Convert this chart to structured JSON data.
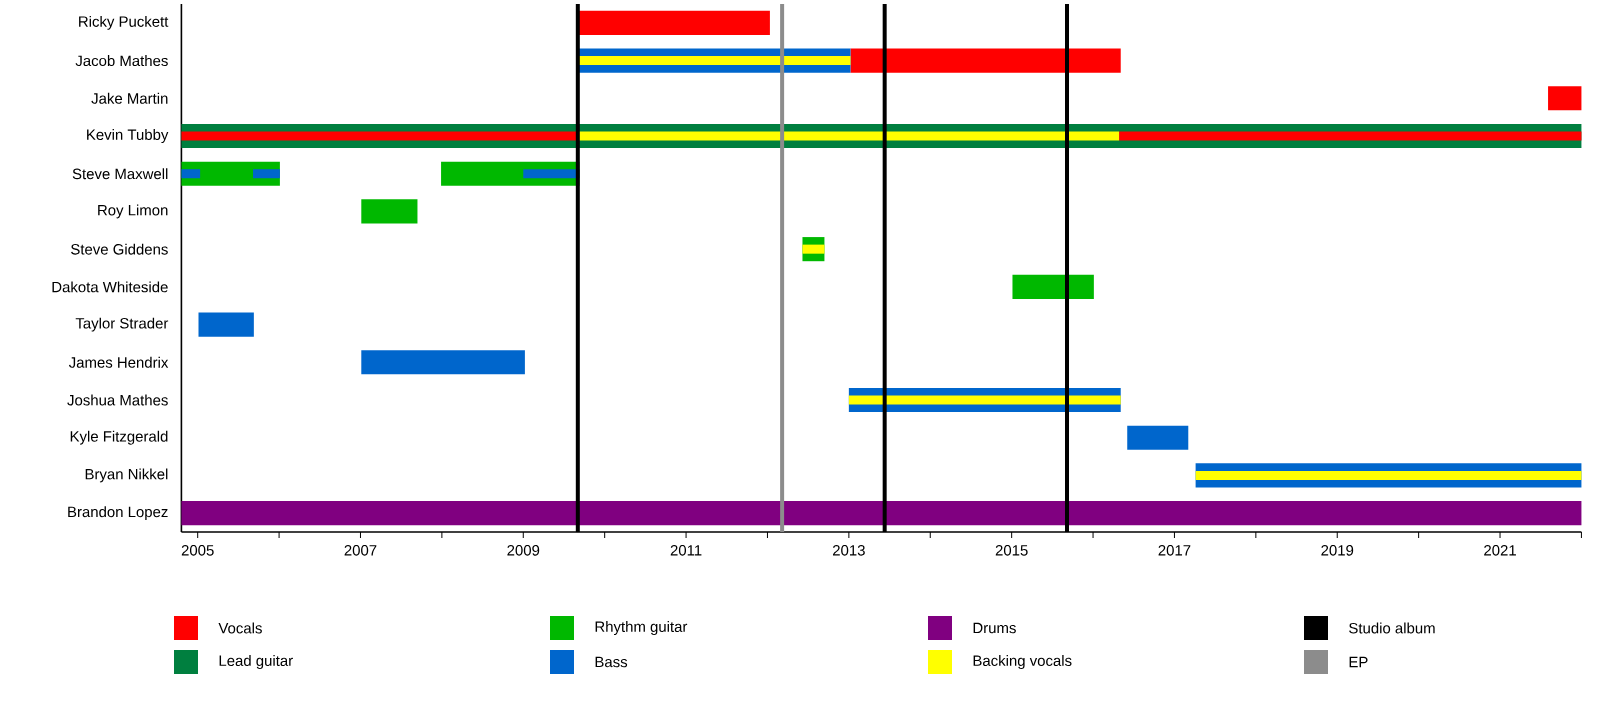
{
  "chart_data": {
    "type": "bar",
    "orientation": "horizontal",
    "legend": "bottom",
    "categories": [
      "Ricky Puckett",
      "Jacob Mathes",
      "Jake Martin",
      "Kevin Tubby",
      "Steve Maxwell",
      "Roy Limon",
      "Steve Giddens",
      "Dakota Whiteside",
      "Taylor Strader",
      "James Hendrix",
      "Joshua Mathes",
      "Kyle Fitzgerald",
      "Bryan Nikkel",
      "Brandon Lopez"
    ],
    "xlim": [
      2004.8,
      2022.0
    ],
    "xticks": [
      2005,
      {
        "value": 2006,
        "label": null
      },
      2007,
      {
        "value": 2008,
        "label": null
      },
      2009,
      {
        "value": 2010,
        "label": null
      },
      2011,
      {
        "value": 2012,
        "label": null
      },
      2013,
      {
        "value": 2014,
        "label": null
      },
      2015,
      {
        "value": 2016,
        "label": null
      },
      2017,
      {
        "value": 2018,
        "label": null
      },
      2019,
      {
        "value": 2020,
        "label": null
      },
      2021,
      {
        "value": 2022,
        "label": null
      }
    ],
    "series": [
      {
        "name": "Vocals",
        "color": "#ff0000",
        "base": [
          2009.67,
          2013.02,
          2021.59,
          2004.8,
          null,
          null,
          null,
          null,
          null,
          null,
          null,
          null,
          null,
          null
        ],
        "values": [
          2.36,
          3.32,
          0.41,
          4.87,
          null,
          null,
          null,
          null,
          null,
          null,
          null,
          null,
          null,
          null
        ]
      },
      {
        "color": "#ff0000",
        "base": [
          null,
          null,
          null,
          2016.32,
          null,
          null,
          null,
          null,
          null,
          null,
          null,
          null,
          null,
          null
        ],
        "values": [
          null,
          null,
          null,
          5.68,
          null,
          null,
          null,
          null,
          null,
          null,
          null,
          null,
          null,
          null
        ]
      },
      {
        "name": "Lead guitar",
        "color": "#007f3f",
        "base": [
          null,
          null,
          null,
          2004.8,
          null,
          null,
          null,
          null,
          null,
          null,
          null,
          null,
          null,
          null
        ],
        "values": [
          null,
          null,
          null,
          17.2,
          null,
          null,
          null,
          null,
          null,
          null,
          null,
          null,
          null,
          null
        ]
      },
      {
        "name": "Rhythm guitar",
        "color": "#00b800",
        "base": [
          null,
          null,
          null,
          null,
          2004.8,
          2007.01,
          2012.43,
          2015.01,
          null,
          null,
          null,
          null,
          null,
          null
        ],
        "values": [
          null,
          null,
          null,
          null,
          1.21,
          0.69,
          0.27,
          1.0,
          null,
          null,
          null,
          null,
          null,
          null
        ]
      },
      {
        "color": "#00b800",
        "base": [
          null,
          null,
          null,
          null,
          2007.99,
          null,
          null,
          null,
          null,
          null,
          null,
          null,
          null,
          null
        ],
        "values": [
          null,
          null,
          null,
          null,
          1.7,
          null,
          null,
          null,
          null,
          null,
          null,
          null,
          null,
          null
        ]
      },
      {
        "name": "Bass",
        "color": "#0066cc",
        "base": [
          null,
          2009.67,
          null,
          null,
          2004.8,
          null,
          null,
          null,
          2005.01,
          2007.01,
          2013.0,
          2016.42,
          2017.26,
          null
        ],
        "values": [
          null,
          3.35,
          null,
          null,
          0.23,
          null,
          null,
          null,
          0.68,
          2.01,
          3.34,
          0.75,
          4.74,
          null
        ]
      },
      {
        "color": "#0066cc",
        "base": [
          null,
          null,
          null,
          null,
          2005.68,
          null,
          null,
          null,
          null,
          null,
          null,
          null,
          null,
          null
        ],
        "values": [
          null,
          null,
          null,
          null,
          0.33,
          null,
          null,
          null,
          null,
          null,
          null,
          null,
          null,
          null
        ]
      },
      {
        "color": "#0066cc",
        "base": [
          null,
          null,
          null,
          null,
          2009.0,
          null,
          null,
          null,
          null,
          null,
          null,
          null,
          null,
          null
        ],
        "values": [
          null,
          null,
          null,
          null,
          0.69,
          null,
          null,
          null,
          null,
          null,
          null,
          null,
          null,
          null
        ]
      },
      {
        "name": "Drums",
        "color": "#800080",
        "base": [
          null,
          null,
          null,
          null,
          null,
          null,
          null,
          null,
          null,
          null,
          null,
          null,
          null,
          2004.8
        ],
        "values": [
          null,
          null,
          null,
          null,
          null,
          null,
          null,
          null,
          null,
          null,
          null,
          null,
          null,
          17.2
        ]
      },
      {
        "name": "Backing vocals",
        "color": "#ffff00",
        "base": [
          null,
          2009.67,
          null,
          2009.67,
          null,
          null,
          2012.43,
          null,
          null,
          null,
          2013.0,
          null,
          2017.26,
          null
        ],
        "values": [
          null,
          3.35,
          null,
          6.65,
          null,
          null,
          0.27,
          null,
          null,
          null,
          3.34,
          null,
          4.74,
          null
        ]
      }
    ],
    "ref_lines": [
      {
        "axis": "x",
        "value": 2009.67,
        "label": "Studio album",
        "color": "#000000"
      },
      {
        "axis": "x",
        "value": 2013.44,
        "color": "#000000"
      },
      {
        "axis": "x",
        "value": 2015.68,
        "color": "#000000"
      },
      {
        "axis": "x",
        "value": 2012.18,
        "label": "EP",
        "color": "#8c8c8c"
      }
    ]
  }
}
